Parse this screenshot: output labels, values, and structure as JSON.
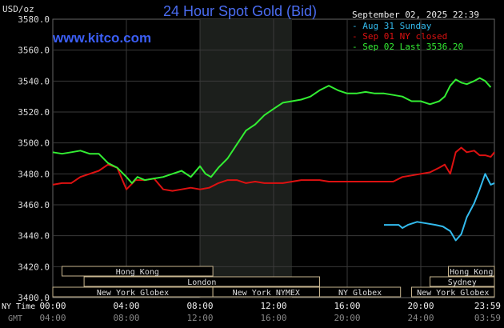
{
  "header": {
    "title": "24 Hour Spot Gold (Bid)",
    "brand": "www.kitco.com",
    "unit": "USD/oz",
    "timestamp": "September 02, 2025 22:39"
  },
  "legend": [
    {
      "label": "Aug 31 Sunday",
      "color": "#33bbee"
    },
    {
      "label": "Sep 01 NY closed",
      "color": "#dd1111"
    },
    {
      "label": "Sep 02 Last 3536.20",
      "color": "#33ee33"
    }
  ],
  "sessions": [
    {
      "label": "Hong Kong",
      "row": 0,
      "start": 0.5,
      "end": 8.7
    },
    {
      "label": "London",
      "row": 1,
      "start": 1.7,
      "end": 14.5
    },
    {
      "label": "New York Globex",
      "row": 2,
      "start": 0,
      "end": 8.7
    },
    {
      "label": "New York NYMEX",
      "row": 2,
      "start": 8.7,
      "end": 14.5
    },
    {
      "label": "NY Globex",
      "row": 2,
      "start": 14.5,
      "end": 18.9
    },
    {
      "label": "Hong Kong",
      "row": 0,
      "start": 21.5,
      "end": 24
    },
    {
      "label": "Sydney",
      "row": 1,
      "start": 20.5,
      "end": 24
    },
    {
      "label": "New York Globex",
      "row": 2,
      "start": 19.5,
      "end": 24
    }
  ],
  "footer": {
    "ny_time_label": "NY Time",
    "gmt_label": "GMT"
  },
  "chart_data": {
    "type": "line",
    "title": "24 Hour Spot Gold (Bid)",
    "ylabel": "USD/oz",
    "ylim": [
      3400,
      3580
    ],
    "y_ticks": [
      "3400.0",
      "3420.0",
      "3440.0",
      "3460.0",
      "3480.0",
      "3500.0",
      "3520.0",
      "3540.0",
      "3560.0",
      "3580.0"
    ],
    "xlim": [
      0,
      24
    ],
    "x_ticks_ny": [
      "00:00",
      "04:00",
      "08:00",
      "12:00",
      "16:00",
      "20:00",
      "23:59"
    ],
    "x_ticks_gmt": [
      "04:00",
      "08:00",
      "12:00",
      "16:00",
      "20:00",
      "24:00",
      "03:59"
    ],
    "highlight_range": [
      8.0,
      13.0
    ],
    "grid": true,
    "legend_position": "top-right",
    "series": [
      {
        "name": "Aug 31 Sunday",
        "color": "#33bbee",
        "x": [
          18.0,
          18.4,
          18.8,
          19.0,
          19.3,
          19.8,
          20.3,
          20.8,
          21.2,
          21.6,
          21.9,
          22.2,
          22.5,
          22.9,
          23.2,
          23.5,
          23.8,
          24.0
        ],
        "y": [
          3447,
          3447,
          3447,
          3445,
          3447,
          3449,
          3448,
          3447,
          3446,
          3443,
          3437,
          3441,
          3452,
          3461,
          3470,
          3480,
          3473,
          3474
        ]
      },
      {
        "name": "Sep 01 NY closed",
        "color": "#dd1111",
        "x": [
          0.0,
          0.5,
          1.0,
          1.5,
          2.0,
          2.5,
          3.0,
          3.5,
          4.0,
          4.5,
          5.0,
          5.5,
          6.0,
          6.5,
          7.0,
          7.5,
          8.0,
          8.5,
          9.0,
          9.5,
          10.0,
          10.5,
          11.0,
          11.5,
          12.0,
          12.5,
          13.0,
          13.5,
          14.0,
          14.5,
          15.0,
          15.5,
          16.0,
          16.5,
          17.0,
          17.5,
          18.0,
          18.5,
          19.0,
          19.5,
          20.0,
          20.5,
          21.0,
          21.3,
          21.6,
          21.9,
          22.2,
          22.5,
          22.9,
          23.2,
          23.5,
          23.8,
          24.0
        ],
        "y": [
          3473,
          3474,
          3474,
          3478,
          3480,
          3482,
          3486,
          3484,
          3470,
          3476,
          3476,
          3477,
          3470,
          3469,
          3470,
          3471,
          3470,
          3471,
          3474,
          3476,
          3476,
          3474,
          3475,
          3474,
          3474,
          3474,
          3475,
          3476,
          3476,
          3476,
          3475,
          3475,
          3475,
          3475,
          3475,
          3475,
          3475,
          3475,
          3478,
          3479,
          3480,
          3481,
          3484,
          3486,
          3480,
          3494,
          3497,
          3494,
          3495,
          3492,
          3492,
          3491,
          3494
        ]
      },
      {
        "name": "Sep 02 Last 3536.20",
        "color": "#33ee33",
        "x": [
          0.0,
          0.5,
          1.0,
          1.5,
          2.0,
          2.5,
          3.0,
          3.5,
          4.0,
          4.3,
          4.6,
          5.0,
          5.5,
          6.0,
          6.5,
          7.0,
          7.5,
          8.0,
          8.3,
          8.6,
          9.0,
          9.5,
          10.0,
          10.5,
          11.0,
          11.5,
          12.0,
          12.5,
          13.0,
          13.5,
          14.0,
          14.5,
          15.0,
          15.5,
          16.0,
          16.5,
          17.0,
          17.5,
          18.0,
          18.5,
          19.0,
          19.5,
          20.0,
          20.5,
          21.0,
          21.3,
          21.6,
          21.9,
          22.2,
          22.5,
          22.9,
          23.2,
          23.5,
          23.8
        ],
        "y": [
          3494,
          3493,
          3494,
          3495,
          3493,
          3493,
          3487,
          3484,
          3478,
          3474,
          3478,
          3476,
          3477,
          3478,
          3480,
          3482,
          3478,
          3485,
          3480,
          3478,
          3484,
          3490,
          3499,
          3508,
          3512,
          3518,
          3522,
          3526,
          3527,
          3528,
          3530,
          3534,
          3537,
          3534,
          3532,
          3532,
          3533,
          3532,
          3532,
          3531,
          3530,
          3527,
          3527,
          3525,
          3527,
          3530,
          3537,
          3541,
          3539,
          3538,
          3540,
          3542,
          3540,
          3536
        ]
      }
    ]
  }
}
